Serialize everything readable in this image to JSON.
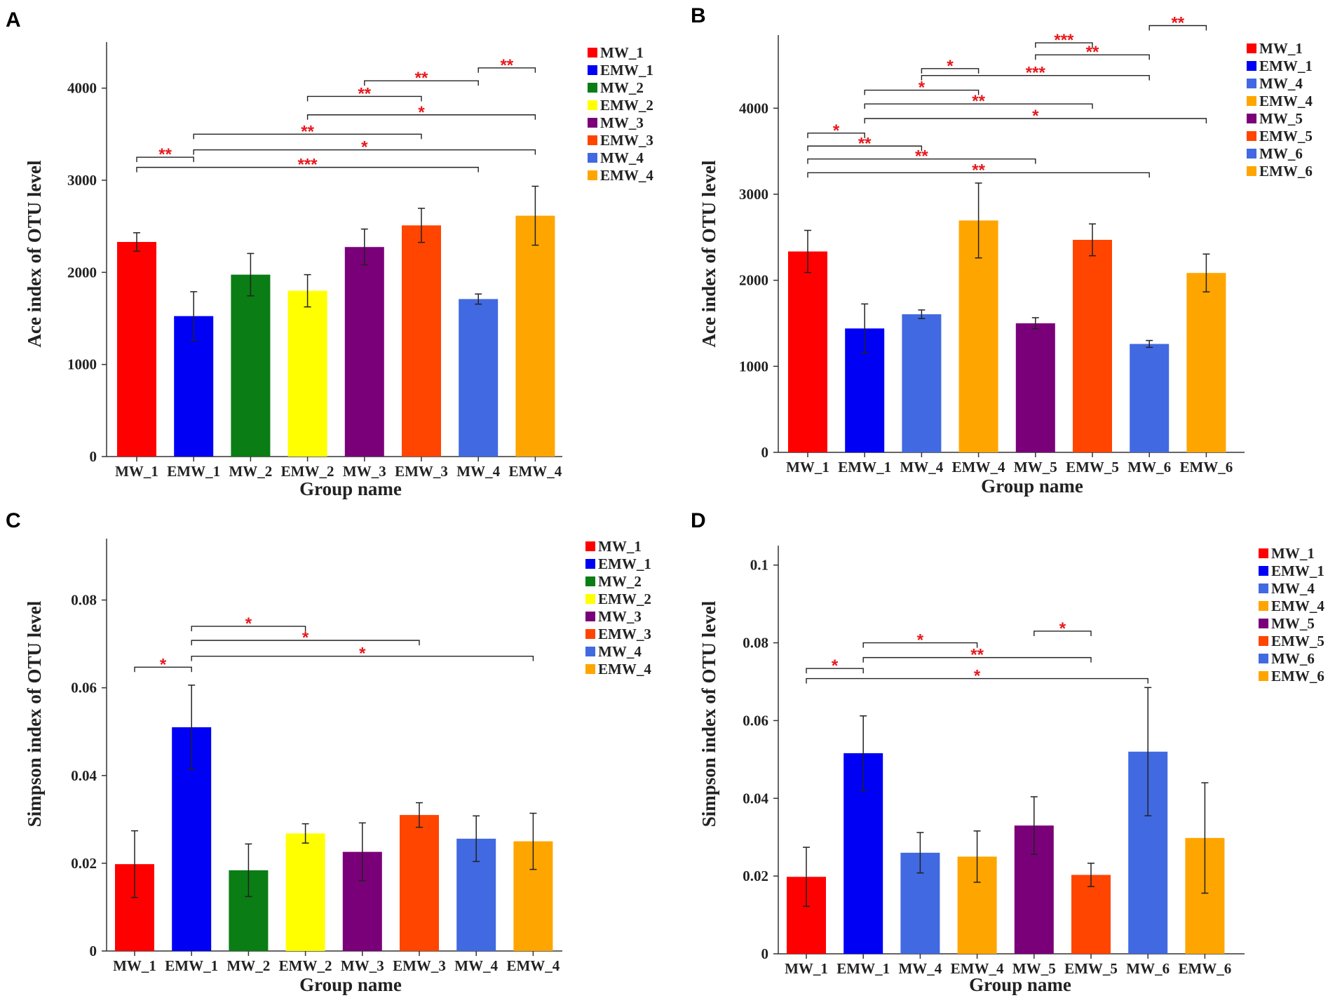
{
  "colors": {
    "MW_1": "#ff0000",
    "EMW_1": "#0000f5",
    "MW_2": "#0a7d14",
    "EMW_2": "#ffff00",
    "MW_3": "#7a007a",
    "EMW_3": "#ff4500",
    "MW_4": "#4169e1",
    "EMW_4": "#ffa500",
    "MW_5": "#7a007a",
    "EMW_5": "#ff4500",
    "MW_6": "#4169e1",
    "EMW_6": "#ffa500",
    "significance": "#e8181c"
  },
  "chart_data": [
    {
      "panel": "A",
      "type": "bar",
      "title": "",
      "xlabel": "Group name",
      "ylabel": "Ace index of OTU level",
      "ylim": [
        0,
        4500
      ],
      "yticks": [
        0,
        1000,
        2000,
        3000,
        4000
      ],
      "yticklabels": [
        "0",
        "1000",
        "2000",
        "3000",
        "4000"
      ],
      "categories": [
        "MW_1",
        "EMW_1",
        "MW_2",
        "EMW_2",
        "MW_3",
        "EMW_3",
        "MW_4",
        "EMW_4"
      ],
      "values": [
        2330,
        1525,
        1975,
        1800,
        2275,
        2510,
        1710,
        2615
      ],
      "errors": [
        100,
        265,
        230,
        175,
        195,
        185,
        55,
        320
      ],
      "legend": [
        "MW_1",
        "EMW_1",
        "MW_2",
        "EMW_2",
        "MW_3",
        "EMW_3",
        "MW_4",
        "EMW_4"
      ],
      "legend_position": "right",
      "significance": [
        {
          "from": 0,
          "to": 1,
          "y": 3250,
          "label": "**"
        },
        {
          "from": 0,
          "to": 6,
          "y": 3140,
          "label": "***"
        },
        {
          "from": 1,
          "to": 5,
          "y": 3500,
          "label": "**"
        },
        {
          "from": 1,
          "to": 7,
          "y": 3330,
          "label": "*"
        },
        {
          "from": 3,
          "to": 5,
          "y": 3910,
          "label": "**"
        },
        {
          "from": 3,
          "to": 7,
          "y": 3710,
          "label": "*"
        },
        {
          "from": 4,
          "to": 6,
          "y": 4080,
          "label": "**"
        },
        {
          "from": 6,
          "to": 7,
          "y": 4220,
          "label": "**"
        }
      ]
    },
    {
      "panel": "B",
      "type": "bar",
      "title": "",
      "xlabel": "Group name",
      "ylabel": "Ace index of OTU level",
      "ylim": [
        0,
        4850
      ],
      "yticks": [
        0,
        1000,
        2000,
        3000,
        4000
      ],
      "yticklabels": [
        "0",
        "1000",
        "2000",
        "3000",
        "4000"
      ],
      "categories": [
        "MW_1",
        "EMW_1",
        "MW_4",
        "EMW_4",
        "MW_5",
        "EMW_5",
        "MW_6",
        "EMW_6"
      ],
      "values": [
        2335,
        1440,
        1605,
        2695,
        1500,
        2470,
        1260,
        2085
      ],
      "errors": [
        245,
        285,
        50,
        435,
        65,
        185,
        40,
        220
      ],
      "legend": [
        "MW_1",
        "EMW_1",
        "MW_4",
        "EMW_4",
        "MW_5",
        "EMW_5",
        "MW_6",
        "EMW_6"
      ],
      "legend_position": "right",
      "significance": [
        {
          "from": 0,
          "to": 1,
          "y": 3710,
          "label": "*"
        },
        {
          "from": 0,
          "to": 2,
          "y": 3560,
          "label": "**"
        },
        {
          "from": 0,
          "to": 4,
          "y": 3410,
          "label": "**"
        },
        {
          "from": 0,
          "to": 6,
          "y": 3250,
          "label": "**"
        },
        {
          "from": 1,
          "to": 3,
          "y": 4210,
          "label": "*"
        },
        {
          "from": 1,
          "to": 5,
          "y": 4050,
          "label": "**"
        },
        {
          "from": 1,
          "to": 7,
          "y": 3880,
          "label": "*"
        },
        {
          "from": 2,
          "to": 3,
          "y": 4460,
          "label": "*"
        },
        {
          "from": 2,
          "to": 6,
          "y": 4380,
          "label": "***"
        },
        {
          "from": 4,
          "to": 5,
          "y": 4760,
          "label": "***"
        },
        {
          "from": 4,
          "to": 6,
          "y": 4620,
          "label": "**"
        },
        {
          "from": 6,
          "to": 7,
          "y": 4960,
          "label": "**"
        }
      ]
    },
    {
      "panel": "C",
      "type": "bar",
      "title": "",
      "xlabel": "Group name",
      "ylabel": "Simpson index of OTU level",
      "ylim": [
        0,
        0.094
      ],
      "yticks": [
        0,
        0.02,
        0.04,
        0.06,
        0.08
      ],
      "yticklabels": [
        "0",
        "0.02",
        "0.04",
        "0.06",
        "0.08"
      ],
      "categories": [
        "MW_1",
        "EMW_1",
        "MW_2",
        "EMW_2",
        "MW_3",
        "EMW_3",
        "MW_4",
        "EMW_4"
      ],
      "values": [
        0.0198,
        0.051,
        0.0184,
        0.0268,
        0.0226,
        0.031,
        0.0256,
        0.025
      ],
      "errors": [
        0.0076,
        0.0096,
        0.006,
        0.0022,
        0.0066,
        0.0028,
        0.0052,
        0.0064
      ],
      "legend": [
        "MW_1",
        "EMW_1",
        "MW_2",
        "EMW_2",
        "MW_3",
        "EMW_3",
        "MW_4",
        "EMW_4"
      ],
      "legend_position": "right",
      "significance": [
        {
          "from": 0,
          "to": 1,
          "y": 0.0647,
          "label": "*"
        },
        {
          "from": 1,
          "to": 3,
          "y": 0.074,
          "label": "*"
        },
        {
          "from": 1,
          "to": 5,
          "y": 0.0708,
          "label": "*"
        },
        {
          "from": 1,
          "to": 7,
          "y": 0.0672,
          "label": "*"
        }
      ]
    },
    {
      "panel": "D",
      "type": "bar",
      "title": "",
      "xlabel": "Group name",
      "ylabel": "Simpson index of OTU level",
      "ylim": [
        0,
        0.105
      ],
      "yticks": [
        0,
        0.02,
        0.04,
        0.06,
        0.08,
        0.1
      ],
      "yticklabels": [
        "0",
        "0.02",
        "0.04",
        "0.06",
        "0.08",
        "0.1"
      ],
      "categories": [
        "MW_1",
        "EMW_1",
        "MW_4",
        "EMW_4",
        "MW_5",
        "EMW_5",
        "MW_6",
        "EMW_6"
      ],
      "values": [
        0.0198,
        0.0516,
        0.026,
        0.025,
        0.033,
        0.0203,
        0.052,
        0.0298
      ],
      "errors": [
        0.0076,
        0.0096,
        0.0052,
        0.0066,
        0.0074,
        0.003,
        0.0165,
        0.0142
      ],
      "legend": [
        "MW_1",
        "EMW_1",
        "MW_4",
        "EMW_4",
        "MW_5",
        "EMW_5",
        "MW_6",
        "EMW_6"
      ],
      "legend_position": "right",
      "significance": [
        {
          "from": 0,
          "to": 1,
          "y": 0.0734,
          "label": "*"
        },
        {
          "from": 0,
          "to": 6,
          "y": 0.0708,
          "label": "*"
        },
        {
          "from": 1,
          "to": 3,
          "y": 0.08,
          "label": "*"
        },
        {
          "from": 1,
          "to": 5,
          "y": 0.0762,
          "label": "**"
        },
        {
          "from": 4,
          "to": 5,
          "y": 0.083,
          "label": "*"
        }
      ]
    }
  ]
}
